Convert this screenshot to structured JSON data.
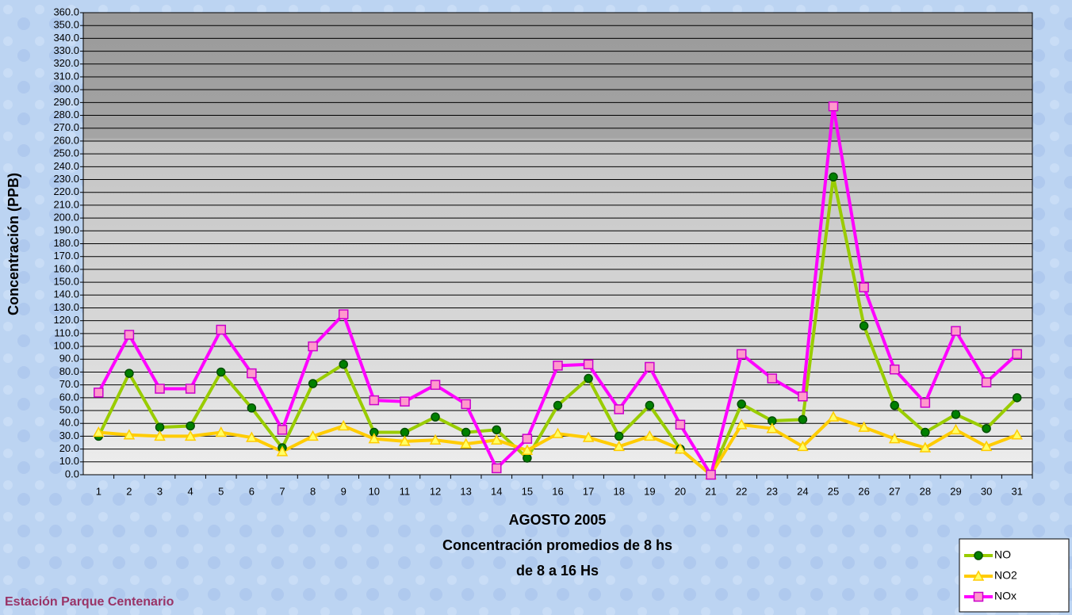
{
  "chart_data": {
    "type": "line",
    "y_label": "Concentración (PPB)",
    "x_title": [
      "AGOSTO 2005",
      "Concentración promedios de 8 hs",
      "de 8 a 16 Hs"
    ],
    "footer": "Estación Parque Centenario",
    "categories": [
      "1",
      "2",
      "3",
      "4",
      "5",
      "6",
      "7",
      "8",
      "9",
      "10",
      "11",
      "12",
      "13",
      "14",
      "15",
      "16",
      "17",
      "18",
      "19",
      "20",
      "21",
      "22",
      "23",
      "24",
      "25",
      "26",
      "27",
      "28",
      "29",
      "30",
      "31"
    ],
    "series": [
      {
        "name": "NO",
        "color": "#99cc00",
        "marker": "circle",
        "marker_color": "#008000",
        "values": [
          30,
          79,
          37,
          38,
          80,
          52,
          21,
          71,
          86,
          33,
          33,
          45,
          33,
          35,
          13,
          54,
          75,
          30,
          54,
          20,
          0,
          55,
          42,
          43,
          232,
          116,
          54,
          33,
          47,
          36,
          60
        ]
      },
      {
        "name": "NO2",
        "color": "#ffcc00",
        "marker": "triangle",
        "marker_color": "#ffff66",
        "values": [
          33,
          31,
          30,
          30,
          33,
          29,
          18,
          30,
          38,
          28,
          26,
          27,
          24,
          27,
          19,
          32,
          29,
          22,
          30,
          20,
          0,
          39,
          36,
          22,
          45,
          37,
          28,
          21,
          35,
          22,
          31
        ]
      },
      {
        "name": "NOx",
        "color": "#ff00ff",
        "marker": "square",
        "marker_color": "#ff99cc",
        "values": [
          64,
          109,
          67,
          67,
          113,
          79,
          35,
          100,
          125,
          58,
          57,
          70,
          55,
          5,
          28,
          85,
          86,
          51,
          84,
          39,
          0,
          94,
          75,
          61,
          287,
          146,
          82,
          56,
          112,
          72,
          94
        ]
      }
    ],
    "ylim": [
      0,
      360
    ],
    "yticks": [
      {
        "value": 0,
        "label": "0.0"
      },
      {
        "value": 10,
        "label": "10.0"
      },
      {
        "value": 20,
        "label": "20.0"
      },
      {
        "value": 30,
        "label": "30.0"
      },
      {
        "value": 40,
        "label": "40.0"
      },
      {
        "value": 50,
        "label": "50.0"
      },
      {
        "value": 60,
        "label": "60.0"
      },
      {
        "value": 70,
        "label": "70.0"
      },
      {
        "value": 80,
        "label": "80.0"
      },
      {
        "value": 90,
        "label": "90.0"
      },
      {
        "value": 100,
        "label": "100.0"
      },
      {
        "value": 110,
        "label": "110.0"
      },
      {
        "value": 120,
        "label": "120.0"
      },
      {
        "value": 130,
        "label": "130.0"
      },
      {
        "value": 140,
        "label": "140.0"
      },
      {
        "value": 150,
        "label": "150.0"
      },
      {
        "value": 160,
        "label": "160.0"
      },
      {
        "value": 170,
        "label": "170.0"
      },
      {
        "value": 180,
        "label": "180.0"
      },
      {
        "value": 190,
        "label": "190.0"
      },
      {
        "value": 200,
        "label": "200.0"
      },
      {
        "value": 210,
        "label": "210.0"
      },
      {
        "value": 220,
        "label": "220.0"
      },
      {
        "value": 230,
        "label": "230.0"
      },
      {
        "value": 240,
        "label": "240.0"
      },
      {
        "value": 250,
        "label": "250.0"
      },
      {
        "value": 260,
        "label": "260.0"
      },
      {
        "value": 270,
        "label": "270.0"
      },
      {
        "value": 280,
        "label": "280.0"
      },
      {
        "value": 290,
        "label": "290.0"
      },
      {
        "value": 300,
        "label": "300.0"
      },
      {
        "value": 310,
        "label": "310.0"
      },
      {
        "value": 320,
        "label": "320.0"
      },
      {
        "value": 330,
        "label": "330.0"
      },
      {
        "value": 340,
        "label": "340.0"
      },
      {
        "value": 350,
        "label": "350.0"
      },
      {
        "value": 360,
        "label": "360.0"
      }
    ],
    "grid": true,
    "legend_position": "lower right"
  }
}
